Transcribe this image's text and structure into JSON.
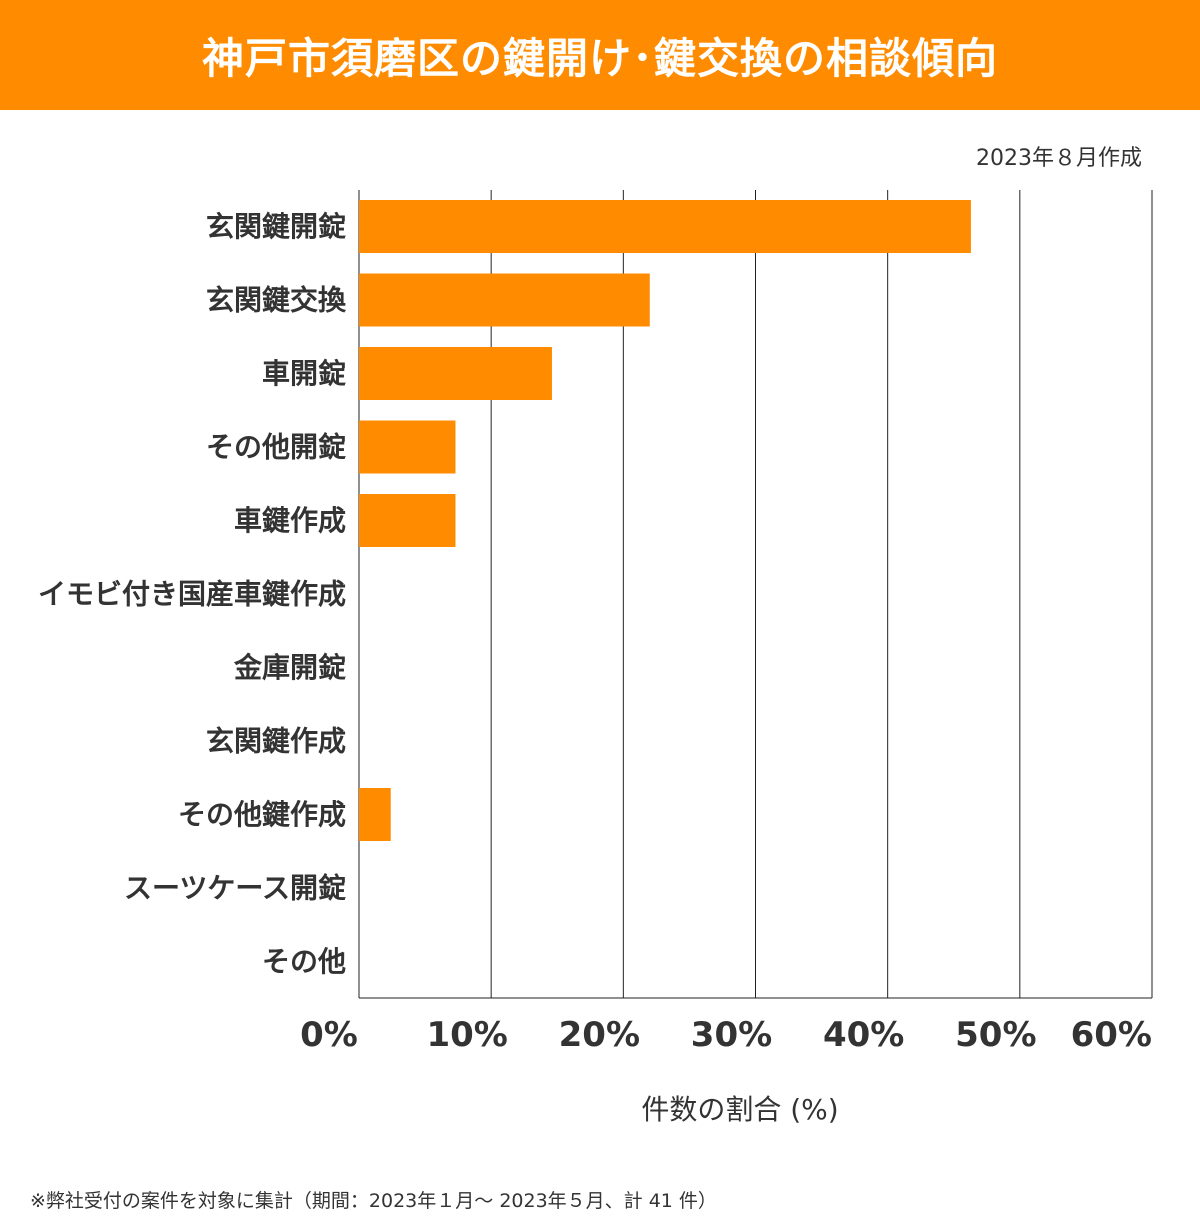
{
  "header": {
    "title": "神戸市須磨区の鍵開け･鍵交換の相談傾向",
    "created": "2023年８月作成"
  },
  "colors": {
    "accent": "#ff8c00",
    "grid": "#222222",
    "text": "#333333"
  },
  "chart_data": {
    "type": "bar",
    "orientation": "horizontal",
    "categories": [
      "玄関鍵開錠",
      "玄関鍵交換",
      "車開錠",
      "その他開錠",
      "車鍵作成",
      "イモビ付き国産車鍵作成",
      "金庫開錠",
      "玄関鍵作成",
      "その他鍵作成",
      "スーツケース開錠",
      "その他"
    ],
    "values": [
      46.3,
      22.0,
      14.6,
      7.3,
      7.3,
      0,
      0,
      0,
      2.4,
      0,
      0
    ],
    "xlim": [
      0,
      60
    ],
    "xticks": [
      0,
      10,
      20,
      30,
      40,
      50,
      60
    ],
    "xtick_labels": [
      "0%",
      "10%",
      "20%",
      "30%",
      "40%",
      "50%",
      "60%"
    ],
    "xlabel": "件数の割合 (%)",
    "grid": "vertical"
  },
  "footnote": "※弊社受付の案件を対象に集計（期間：2023年１月～ 2023年５月、計 41 件）"
}
